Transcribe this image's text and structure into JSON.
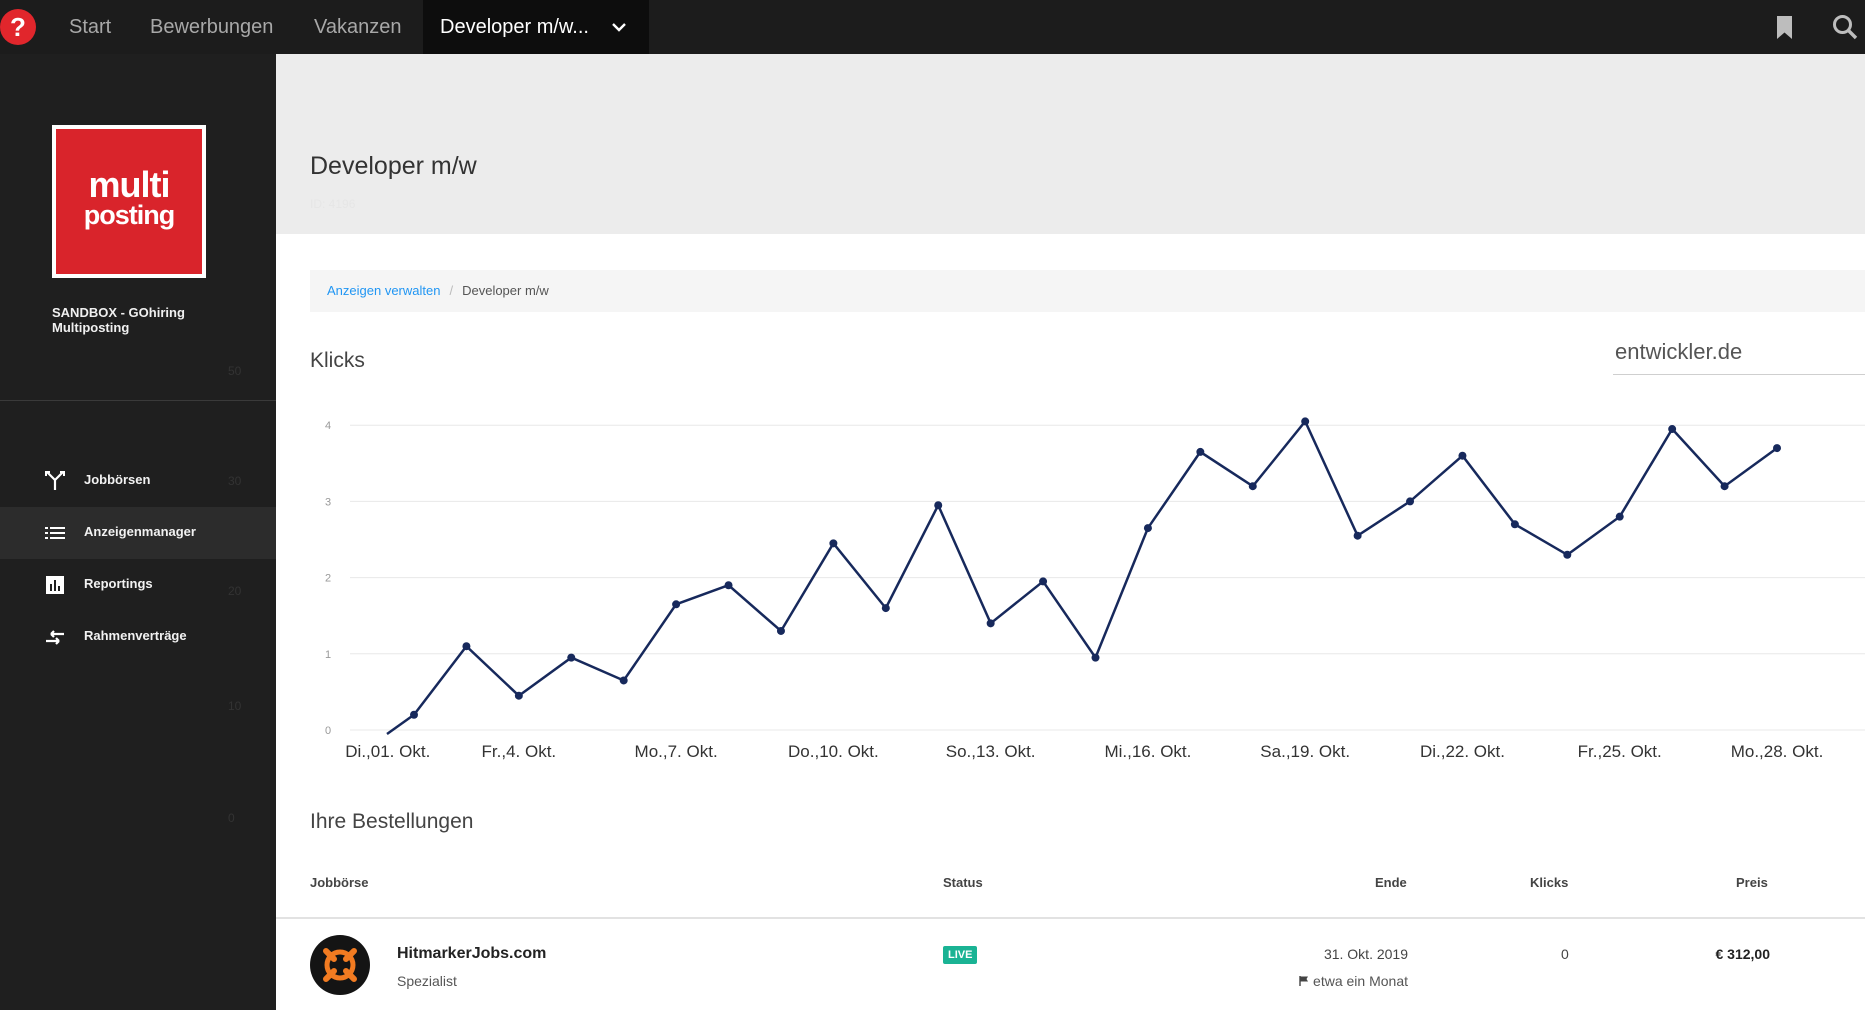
{
  "topbar": {
    "logo_glyph": "?",
    "nav": [
      "Start",
      "Bewerbungen",
      "Vakanzen"
    ],
    "active_tab": "Developer m/w...",
    "icons": [
      "bookmark-icon",
      "search-icon"
    ]
  },
  "sidebar": {
    "brand_line1": "multi",
    "brand_line2": "posting",
    "org_name": "SANDBOX - GOhiring Multiposting",
    "items": [
      {
        "label": "Jobbörsen",
        "icon": "fork-icon"
      },
      {
        "label": "Anzeigenmanager",
        "icon": "list-icon"
      },
      {
        "label": "Reportings",
        "icon": "bar-chart-icon"
      },
      {
        "label": "Rahmenverträge",
        "icon": "swap-icon"
      }
    ],
    "ghost_ticks": [
      "50",
      "30",
      "20",
      "10",
      "0"
    ]
  },
  "page": {
    "title": "Developer m/w",
    "id": "ID: 4196"
  },
  "breadcrumb": {
    "link": "Anzeigen verwalten",
    "separator": "/",
    "current": "Developer m/w"
  },
  "chart_section": {
    "title": "Klicks",
    "selected_board": "entwickler.de"
  },
  "chart_data": {
    "type": "line",
    "title": "Klicks",
    "ylim": [
      0,
      4.2
    ],
    "yticks": [
      0,
      1,
      2,
      3,
      4
    ],
    "grid": true,
    "x_tick_labels": [
      "Di.,01. Okt.",
      "Fr.,4. Okt.",
      "Mo.,7. Okt.",
      "Do.,10. Okt.",
      "So.,13. Okt.",
      "Mi.,16. Okt.",
      "Sa.,19. Okt.",
      "Di.,22. Okt.",
      "Fr.,25. Okt.",
      "Mo.,28. Okt."
    ],
    "series": [
      {
        "color": "#17295c",
        "values": [
          0.2,
          1.1,
          0.45,
          0.95,
          0.65,
          1.65,
          1.9,
          1.3,
          2.45,
          1.6,
          2.95,
          1.4,
          1.95,
          0.95,
          2.65,
          3.65,
          3.2,
          4.05,
          2.55,
          3.0,
          3.6,
          2.7,
          2.3,
          2.8,
          3.95,
          3.2,
          3.7
        ]
      }
    ]
  },
  "orders": {
    "title": "Ihre Bestellungen",
    "columns": [
      "Jobbörse",
      "Status",
      "Ende",
      "Klicks",
      "Preis"
    ],
    "rows": [
      {
        "name": "HitmarkerJobs.com",
        "category": "Spezialist",
        "status": "LIVE",
        "end": "31. Okt. 2019",
        "relative": "etwa ein Monat",
        "klicks": "0",
        "price": "€ 312,00",
        "status_color": "#1ab394"
      }
    ]
  }
}
